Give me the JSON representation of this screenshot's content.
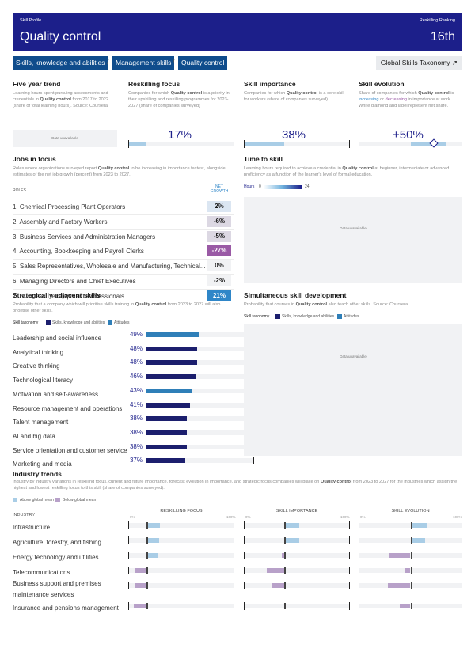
{
  "header": {
    "left_small": "Skill Profile",
    "right_small": "Reskilling Ranking",
    "title": "Quality control",
    "rank": "16th"
  },
  "breadcrumb": {
    "items": [
      "Skills, knowledge and abilities",
      "Management skills",
      "Quality control"
    ],
    "separator": "/",
    "taxonomy_button": "Global Skills Taxonomy ↗"
  },
  "five_year": {
    "title": "Five year trend",
    "desc_a": "Learning hours spent pursuing assessments and credentials in ",
    "desc_skill": "Quality control",
    "desc_b": " from 2017 to 2022 (share of total learning hours). Source: Coursera",
    "unavailable": "Data unavailable"
  },
  "reskilling": {
    "title": "Reskilling focus",
    "desc_a": "Companies for which ",
    "desc_skill": "Quality control",
    "desc_b": " is a priority in their upskilling and reskilling programmes for 2023-2027 (share of companies surveyed)",
    "value": "17%",
    "fraction": 0.17
  },
  "importance": {
    "title": "Skill importance",
    "desc_a": "Companies for which ",
    "desc_skill": "Quality control",
    "desc_b": " is a core skill for workers (share of companies surveyed)",
    "value": "38%",
    "fraction": 0.38
  },
  "evolution": {
    "title": "Skill evolution",
    "desc_a": "Share of companies for which ",
    "desc_skill": "Quality control",
    "desc_b": " is ",
    "desc_inc": "increasing",
    "desc_c": " or ",
    "desc_dec": "decreasing",
    "desc_d": " in importance at work. White diamond and label represent net share.",
    "value": "+50%"
  },
  "jobs": {
    "title": "Jobs in focus",
    "desc_a": "Roles where organizations surveyed report ",
    "desc_skill": "Quality control",
    "desc_b": " to be increasing in importance fastest, alongside estimates of the net job growth (percent) from 2023 to 2027.",
    "col_roles": "ROLES",
    "col_net": "NET",
    "col_growth": "GROWTH",
    "rows": [
      {
        "label": "1.  Chemical Processing Plant Operators",
        "growth": "2%",
        "color": "#dbe6f2",
        "text": "#1a1a1a"
      },
      {
        "label": "2.  Assembly and Factory Workers",
        "growth": "-6%",
        "color": "#dcd8e3",
        "text": "#1a1a1a"
      },
      {
        "label": "3.  Business Services and Administration Managers",
        "growth": "-5%",
        "color": "#dcd8e3",
        "text": "#1a1a1a"
      },
      {
        "label": "4.  Accounting, Bookkeeping and Payroll Clerks",
        "growth": "-27%",
        "color": "#9a5aa5",
        "text": "#ffffff"
      },
      {
        "label": "5.  Sales Representatives, Wholesale and Manufacturing, Technical...",
        "growth": "0%",
        "color": "#f1f2f4",
        "text": "#1a1a1a"
      },
      {
        "label": "6.  Managing Directors and Chief Executives",
        "growth": "-2%",
        "color": "#f1f2f4",
        "text": "#1a1a1a"
      },
      {
        "label": "7.  Business Development Professionals",
        "growth": "21%",
        "color": "#2f86c8",
        "text": "#ffffff"
      }
    ]
  },
  "time_to_skill": {
    "title": "Time to skill",
    "desc_a": "Learning hours required to achieve a credential in ",
    "desc_skill": "Quality control",
    "desc_b": " at beginner, intermediate or advanced proficiency as a function of the learner's level of formal education.",
    "hours_label": "Hours",
    "hours_min": "0",
    "hours_max": "24",
    "unavailable": "Data unavailable"
  },
  "adjacent": {
    "title": "Strategically adjacent skills",
    "desc_a": "Probability that a company which will prioritise skills training in ",
    "desc_skill": "Quality control",
    "desc_b": " from 2023 to 2027 will also prioritise other skills.",
    "legend_label": "Skill taxonomy",
    "legend_a": "Skills, knowledge and abilities",
    "legend_b": "Attitudes",
    "skills": [
      {
        "name": "Leadership and social influence",
        "pct": "49%",
        "value": 0.49,
        "type": "attitude"
      },
      {
        "name": "Analytical thinking",
        "pct": "48%",
        "value": 0.48,
        "type": "ska"
      },
      {
        "name": "Creative thinking",
        "pct": "48%",
        "value": 0.48,
        "type": "ska"
      },
      {
        "name": "Technological literacy",
        "pct": "46%",
        "value": 0.46,
        "type": "ska"
      },
      {
        "name": "Motivation and self-awareness",
        "pct": "43%",
        "value": 0.43,
        "type": "attitude"
      },
      {
        "name": "Resource management and operations",
        "pct": "41%",
        "value": 0.41,
        "type": "ska"
      },
      {
        "name": "Talent management",
        "pct": "38%",
        "value": 0.38,
        "type": "ska"
      },
      {
        "name": "AI and big data",
        "pct": "38%",
        "value": 0.38,
        "type": "ska"
      },
      {
        "name": "Service orientation and customer service",
        "pct": "38%",
        "value": 0.38,
        "type": "ska"
      },
      {
        "name": "Marketing and media",
        "pct": "37%",
        "value": 0.37,
        "type": "ska"
      }
    ]
  },
  "simultaneous": {
    "title": "Simultaneous skill development",
    "desc_a": "Probability that courses in ",
    "desc_skill": "Quality control",
    "desc_b": " also teach other skills. Source: Coursera.",
    "legend_label": "Skill taxonomy",
    "legend_a": "Skills, knowledge and abilities",
    "legend_b": "Attitudes",
    "unavailable": "Data unavailable"
  },
  "industry": {
    "title": "Industry trends",
    "desc_a": "Industry by industry variations in reskilling focus, current and future importance, forecast evolution in importance, and strategic focus companies will place on ",
    "desc_skill": "Quality control",
    "desc_b": " from 2023 to 2027 for the industries which assign the highest and lowest reskilling focus to this skill (share of companies surveyed).",
    "legend_above": "Above global mean",
    "legend_below": "Below global mean",
    "col_industry": "INDUSTRY",
    "col_reskill": "RESKILLING FOCUS",
    "col_importance": "SKILL IMPORTANCE",
    "col_evolution": "SKILL EVOLUTION",
    "scale_min": "0%",
    "scale_max": "100%",
    "colors": {
      "above": "#a9cde6",
      "below": "#b8a1c9"
    },
    "rows": [
      {
        "name": "Infrastructure",
        "reskill": [
          0.17,
          0.3,
          "above"
        ],
        "importance": [
          0.38,
          0.52,
          "above"
        ],
        "evolution": [
          0.5,
          0.66,
          "above"
        ]
      },
      {
        "name": "Agriculture, forestry, and fishing",
        "reskill": [
          0.17,
          0.29,
          "above"
        ],
        "importance": [
          0.38,
          0.52,
          "above"
        ],
        "evolution": [
          0.5,
          0.64,
          "above"
        ]
      },
      {
        "name": "Energy technology and utilities",
        "reskill": [
          0.17,
          0.28,
          "above"
        ],
        "importance": [
          0.36,
          0.38,
          "below"
        ],
        "evolution": [
          0.3,
          0.5,
          "below"
        ]
      },
      {
        "name": "Telecommunications",
        "reskill": [
          0.06,
          0.17,
          "below"
        ],
        "importance": [
          0.22,
          0.38,
          "below"
        ],
        "evolution": [
          0.44,
          0.5,
          "below"
        ]
      },
      {
        "name": "Business support and premises maintenance services",
        "reskill": [
          0.07,
          0.17,
          "below"
        ],
        "importance": [
          0.27,
          0.38,
          "below"
        ],
        "evolution": [
          0.28,
          0.5,
          "below"
        ]
      },
      {
        "name": "Insurance and pensions management",
        "reskill": [
          0.05,
          0.17,
          "below"
        ],
        "importance": [
          0.38,
          0.38,
          "above"
        ],
        "evolution": [
          0.4,
          0.5,
          "below"
        ]
      }
    ]
  }
}
